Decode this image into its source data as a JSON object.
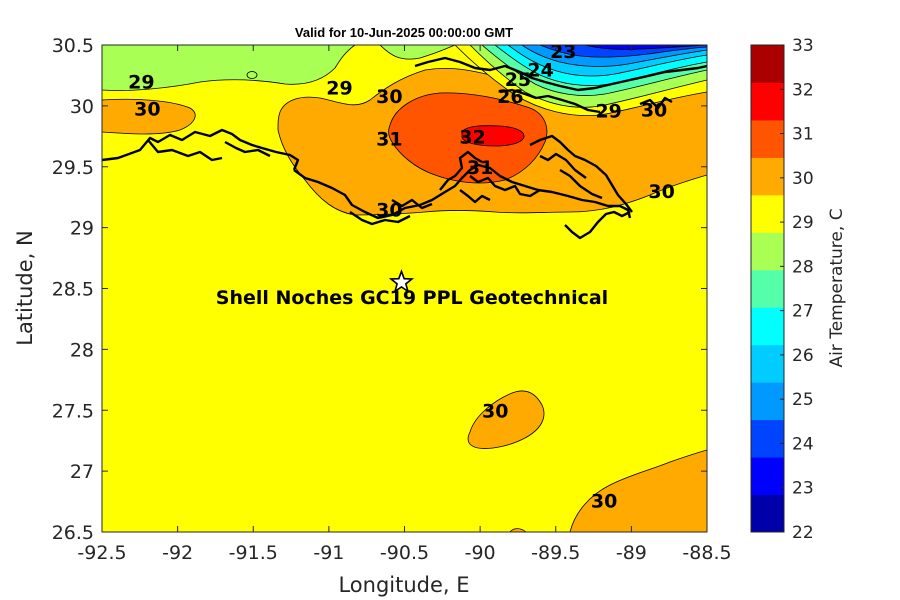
{
  "title": "Valid for 10-Jun-2025 00:00:00 GMT",
  "annotation": "Shell Noches   GC19 PPL  Geotechnical",
  "marker_icon": "star-marker-icon",
  "chart_data": {
    "type": "contour-map",
    "title": "Valid for 10-Jun-2025 00:00:00 GMT",
    "xlabel": "Longitude, E",
    "ylabel": "Latitude, N",
    "xlim": [
      -92.5,
      -88.5
    ],
    "ylim": [
      26.5,
      30.5
    ],
    "xticks": [
      -92.5,
      -92,
      -91.5,
      -91,
      -90.5,
      -90,
      -89.5,
      -89,
      -88.5
    ],
    "yticks": [
      26.5,
      27,
      27.5,
      28,
      28.5,
      29,
      29.5,
      30,
      30.5
    ],
    "xtick_labels": [
      "-92.5",
      "-92",
      "-91.5",
      "-91",
      "-90.5",
      "-90",
      "-89.5",
      "-89",
      "-88.5"
    ],
    "ytick_labels": [
      "26.5",
      "27",
      "27.5",
      "28",
      "28.5",
      "29",
      "29.5",
      "30",
      "30.5"
    ],
    "colorbar": {
      "label": "Air Temperature, C",
      "min": 22,
      "max": 33,
      "ticks": [
        22,
        23,
        24,
        25,
        26,
        27,
        28,
        29,
        30,
        31,
        32,
        33
      ],
      "tick_labels": [
        "22",
        "23",
        "24",
        "25",
        "26",
        "27",
        "28",
        "29",
        "30",
        "31",
        "32",
        "33"
      ],
      "colors": [
        "#0000aa",
        "#0000ff",
        "#0044ff",
        "#0099ff",
        "#00ccff",
        "#00ffff",
        "#55ffaa",
        "#aaff55",
        "#ffff00",
        "#ffaa00",
        "#ff5500",
        "#ff0000",
        "#aa0000"
      ]
    },
    "contour_labels": [
      {
        "text": "29",
        "lon": -92.24,
        "lat": 30.2
      },
      {
        "text": "30",
        "lon": -92.2,
        "lat": 29.98
      },
      {
        "text": "29",
        "lon": -90.93,
        "lat": 30.15
      },
      {
        "text": "30",
        "lon": -90.6,
        "lat": 30.08
      },
      {
        "text": "31",
        "lon": -90.6,
        "lat": 29.73
      },
      {
        "text": "32",
        "lon": -90.05,
        "lat": 29.75
      },
      {
        "text": "31",
        "lon": -90.0,
        "lat": 29.5
      },
      {
        "text": "30",
        "lon": -90.6,
        "lat": 29.15
      },
      {
        "text": "23",
        "lon": -89.45,
        "lat": 30.45
      },
      {
        "text": "24",
        "lon": -89.6,
        "lat": 30.3
      },
      {
        "text": "25",
        "lon": -89.75,
        "lat": 30.22
      },
      {
        "text": "26",
        "lon": -89.8,
        "lat": 30.08
      },
      {
        "text": "29",
        "lon": -89.15,
        "lat": 29.96
      },
      {
        "text": "30",
        "lon": -88.85,
        "lat": 29.97
      },
      {
        "text": "30",
        "lon": -88.8,
        "lat": 29.3
      },
      {
        "text": "30",
        "lon": -89.9,
        "lat": 27.5
      },
      {
        "text": "30",
        "lon": -89.18,
        "lat": 26.76
      }
    ],
    "marker": {
      "lon": -90.52,
      "lat": 28.55
    }
  }
}
